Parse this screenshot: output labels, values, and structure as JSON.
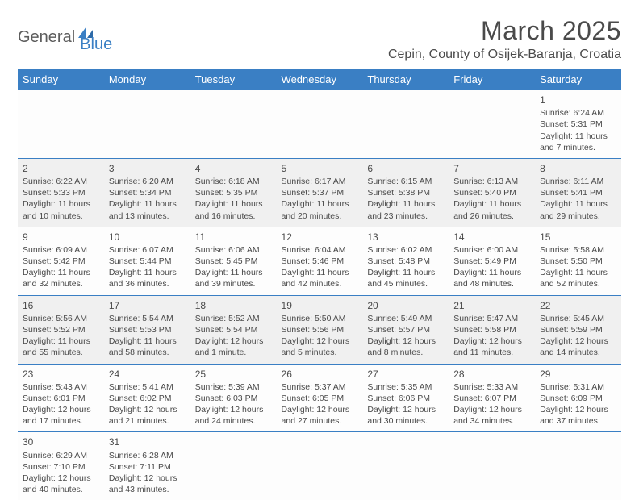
{
  "brand": {
    "part1": "General",
    "part2": "Blue"
  },
  "title": "March 2025",
  "location": "Cepin, County of Osijek-Baranja, Croatia",
  "colors": {
    "header_bg": "#3a7fc4",
    "header_text": "#ffffff",
    "border": "#3a7fc4",
    "shaded_bg": "#f0f0f0",
    "cell_bg": "#fdfdfd",
    "text": "#4a4a4a"
  },
  "day_names": [
    "Sunday",
    "Monday",
    "Tuesday",
    "Wednesday",
    "Thursday",
    "Friday",
    "Saturday"
  ],
  "weeks": [
    [
      null,
      null,
      null,
      null,
      null,
      null,
      {
        "n": "1",
        "sr": "Sunrise: 6:24 AM",
        "ss": "Sunset: 5:31 PM",
        "dl": "Daylight: 11 hours and 7 minutes."
      }
    ],
    [
      {
        "n": "2",
        "sr": "Sunrise: 6:22 AM",
        "ss": "Sunset: 5:33 PM",
        "dl": "Daylight: 11 hours and 10 minutes."
      },
      {
        "n": "3",
        "sr": "Sunrise: 6:20 AM",
        "ss": "Sunset: 5:34 PM",
        "dl": "Daylight: 11 hours and 13 minutes."
      },
      {
        "n": "4",
        "sr": "Sunrise: 6:18 AM",
        "ss": "Sunset: 5:35 PM",
        "dl": "Daylight: 11 hours and 16 minutes."
      },
      {
        "n": "5",
        "sr": "Sunrise: 6:17 AM",
        "ss": "Sunset: 5:37 PM",
        "dl": "Daylight: 11 hours and 20 minutes."
      },
      {
        "n": "6",
        "sr": "Sunrise: 6:15 AM",
        "ss": "Sunset: 5:38 PM",
        "dl": "Daylight: 11 hours and 23 minutes."
      },
      {
        "n": "7",
        "sr": "Sunrise: 6:13 AM",
        "ss": "Sunset: 5:40 PM",
        "dl": "Daylight: 11 hours and 26 minutes."
      },
      {
        "n": "8",
        "sr": "Sunrise: 6:11 AM",
        "ss": "Sunset: 5:41 PM",
        "dl": "Daylight: 11 hours and 29 minutes."
      }
    ],
    [
      {
        "n": "9",
        "sr": "Sunrise: 6:09 AM",
        "ss": "Sunset: 5:42 PM",
        "dl": "Daylight: 11 hours and 32 minutes."
      },
      {
        "n": "10",
        "sr": "Sunrise: 6:07 AM",
        "ss": "Sunset: 5:44 PM",
        "dl": "Daylight: 11 hours and 36 minutes."
      },
      {
        "n": "11",
        "sr": "Sunrise: 6:06 AM",
        "ss": "Sunset: 5:45 PM",
        "dl": "Daylight: 11 hours and 39 minutes."
      },
      {
        "n": "12",
        "sr": "Sunrise: 6:04 AM",
        "ss": "Sunset: 5:46 PM",
        "dl": "Daylight: 11 hours and 42 minutes."
      },
      {
        "n": "13",
        "sr": "Sunrise: 6:02 AM",
        "ss": "Sunset: 5:48 PM",
        "dl": "Daylight: 11 hours and 45 minutes."
      },
      {
        "n": "14",
        "sr": "Sunrise: 6:00 AM",
        "ss": "Sunset: 5:49 PM",
        "dl": "Daylight: 11 hours and 48 minutes."
      },
      {
        "n": "15",
        "sr": "Sunrise: 5:58 AM",
        "ss": "Sunset: 5:50 PM",
        "dl": "Daylight: 11 hours and 52 minutes."
      }
    ],
    [
      {
        "n": "16",
        "sr": "Sunrise: 5:56 AM",
        "ss": "Sunset: 5:52 PM",
        "dl": "Daylight: 11 hours and 55 minutes."
      },
      {
        "n": "17",
        "sr": "Sunrise: 5:54 AM",
        "ss": "Sunset: 5:53 PM",
        "dl": "Daylight: 11 hours and 58 minutes."
      },
      {
        "n": "18",
        "sr": "Sunrise: 5:52 AM",
        "ss": "Sunset: 5:54 PM",
        "dl": "Daylight: 12 hours and 1 minute."
      },
      {
        "n": "19",
        "sr": "Sunrise: 5:50 AM",
        "ss": "Sunset: 5:56 PM",
        "dl": "Daylight: 12 hours and 5 minutes."
      },
      {
        "n": "20",
        "sr": "Sunrise: 5:49 AM",
        "ss": "Sunset: 5:57 PM",
        "dl": "Daylight: 12 hours and 8 minutes."
      },
      {
        "n": "21",
        "sr": "Sunrise: 5:47 AM",
        "ss": "Sunset: 5:58 PM",
        "dl": "Daylight: 12 hours and 11 minutes."
      },
      {
        "n": "22",
        "sr": "Sunrise: 5:45 AM",
        "ss": "Sunset: 5:59 PM",
        "dl": "Daylight: 12 hours and 14 minutes."
      }
    ],
    [
      {
        "n": "23",
        "sr": "Sunrise: 5:43 AM",
        "ss": "Sunset: 6:01 PM",
        "dl": "Daylight: 12 hours and 17 minutes."
      },
      {
        "n": "24",
        "sr": "Sunrise: 5:41 AM",
        "ss": "Sunset: 6:02 PM",
        "dl": "Daylight: 12 hours and 21 minutes."
      },
      {
        "n": "25",
        "sr": "Sunrise: 5:39 AM",
        "ss": "Sunset: 6:03 PM",
        "dl": "Daylight: 12 hours and 24 minutes."
      },
      {
        "n": "26",
        "sr": "Sunrise: 5:37 AM",
        "ss": "Sunset: 6:05 PM",
        "dl": "Daylight: 12 hours and 27 minutes."
      },
      {
        "n": "27",
        "sr": "Sunrise: 5:35 AM",
        "ss": "Sunset: 6:06 PM",
        "dl": "Daylight: 12 hours and 30 minutes."
      },
      {
        "n": "28",
        "sr": "Sunrise: 5:33 AM",
        "ss": "Sunset: 6:07 PM",
        "dl": "Daylight: 12 hours and 34 minutes."
      },
      {
        "n": "29",
        "sr": "Sunrise: 5:31 AM",
        "ss": "Sunset: 6:09 PM",
        "dl": "Daylight: 12 hours and 37 minutes."
      }
    ],
    [
      {
        "n": "30",
        "sr": "Sunrise: 6:29 AM",
        "ss": "Sunset: 7:10 PM",
        "dl": "Daylight: 12 hours and 40 minutes."
      },
      {
        "n": "31",
        "sr": "Sunrise: 6:28 AM",
        "ss": "Sunset: 7:11 PM",
        "dl": "Daylight: 12 hours and 43 minutes."
      },
      null,
      null,
      null,
      null,
      null
    ]
  ],
  "shaded_rows": [
    1,
    3
  ]
}
